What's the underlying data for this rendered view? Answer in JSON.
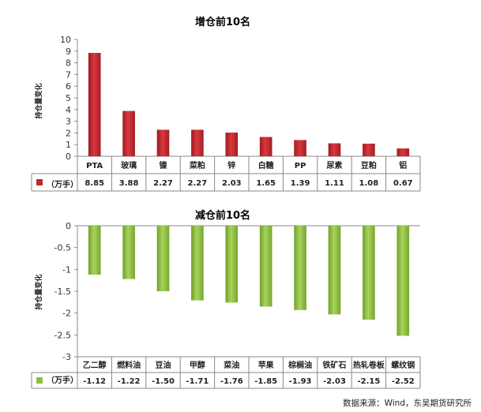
{
  "chart_data": [
    {
      "type": "bar",
      "title": "增仓前10名",
      "ylabel": "持仓量变化",
      "unit_label": "（万手）",
      "ylim": [
        0,
        10
      ],
      "yticks": [
        0,
        1,
        2,
        3,
        4,
        5,
        6,
        7,
        8,
        9,
        10
      ],
      "ytick_labels": [
        "0",
        "1",
        "2",
        "3",
        "4",
        "5",
        "6",
        "7",
        "8",
        "9",
        "10"
      ],
      "categories": [
        "PTA",
        "玻璃",
        "镍",
        "菜粕",
        "锌",
        "白糖",
        "PP",
        "尿素",
        "豆粕",
        "铝"
      ],
      "values": [
        8.85,
        3.88,
        2.27,
        2.27,
        2.03,
        1.65,
        1.39,
        1.11,
        1.08,
        0.67
      ],
      "value_labels": [
        "8.85",
        "3.88",
        "2.27",
        "2.27",
        "2.03",
        "1.65",
        "1.39",
        "1.11",
        "1.08",
        "0.67"
      ],
      "color": "#C0272D",
      "legend": "data-table"
    },
    {
      "type": "bar",
      "title": "减仓前10名",
      "ylabel": "持仓量变化",
      "unit_label": "（万手）",
      "ylim": [
        -3,
        0
      ],
      "yticks": [
        0,
        -0.5,
        -1,
        -1.5,
        -2,
        -2.5,
        -3
      ],
      "ytick_labels": [
        "0",
        "-0.5",
        "-1",
        "-1.5",
        "-2",
        "-2.5",
        "-3"
      ],
      "categories": [
        "乙二醇",
        "燃料油",
        "豆油",
        "甲醇",
        "菜油",
        "苹果",
        "棕榈油",
        "铁矿石",
        "热轧卷板",
        "螺纹钢"
      ],
      "values": [
        -1.12,
        -1.22,
        -1.5,
        -1.71,
        -1.76,
        -1.85,
        -1.93,
        -2.03,
        -2.15,
        -2.52
      ],
      "value_labels": [
        "-1.12",
        "-1.22",
        "-1.50",
        "-1.71",
        "-1.76",
        "-1.85",
        "-1.93",
        "-2.03",
        "-2.15",
        "-2.52"
      ],
      "color": "#8DBF3F",
      "legend": "data-table"
    }
  ],
  "source": "数据来源：Wind，东吴期货研究所"
}
